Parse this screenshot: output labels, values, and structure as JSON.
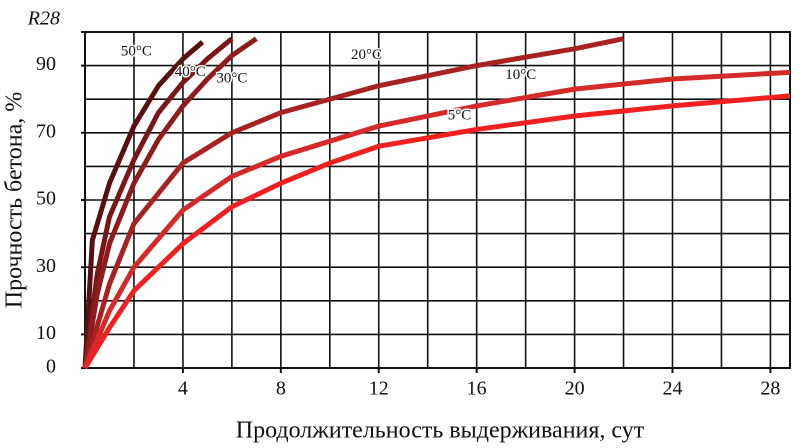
{
  "chart_data": {
    "type": "line",
    "xlabel": "Продолжительность выдерживания, сут",
    "ylabel": "Прочность бетона, %",
    "xlim": [
      0,
      28.8
    ],
    "ylim": [
      0,
      100
    ],
    "xticks": [
      4,
      8,
      12,
      16,
      20,
      24,
      28
    ],
    "yticks": [
      0,
      10,
      30,
      50,
      70,
      90,
      {
        "value": 100,
        "label": "R28"
      }
    ],
    "grid": {
      "x": 2,
      "y": 10
    },
    "series": [
      {
        "name": "50°C",
        "color": "#5a1010",
        "x": [
          0,
          0.3,
          1,
          2,
          3,
          4,
          4.8
        ],
        "values": [
          0,
          38,
          55,
          72,
          84,
          92,
          97
        ]
      },
      {
        "name": "40°C",
        "color": "#7a1616",
        "x": [
          0,
          0.5,
          1,
          2,
          3,
          4,
          5,
          6
        ],
        "values": [
          0,
          28,
          45,
          62,
          76,
          85,
          92,
          98
        ]
      },
      {
        "name": "30°C",
        "color": "#8e1c1c",
        "x": [
          0,
          0.5,
          1,
          2,
          3,
          4,
          5,
          6,
          7
        ],
        "values": [
          0,
          22,
          37,
          55,
          68,
          78,
          86,
          93,
          98
        ]
      },
      {
        "name": "20°C",
        "color": "#a82222",
        "x": [
          0,
          1,
          2,
          4,
          6,
          8,
          12,
          16,
          20,
          22
        ],
        "values": [
          0,
          25,
          43,
          61,
          70,
          76,
          84,
          90,
          95,
          98
        ]
      },
      {
        "name": "10°C",
        "color": "#d42a2a",
        "x": [
          0,
          1,
          2,
          4,
          6,
          8,
          12,
          16,
          20,
          24,
          28.8
        ],
        "values": [
          0,
          17,
          30,
          47,
          57,
          63,
          72,
          78,
          83,
          86,
          88
        ]
      },
      {
        "name": "5°C",
        "color": "#f02020",
        "x": [
          0,
          1,
          2,
          4,
          6,
          8,
          10,
          12,
          16,
          20,
          24,
          28.8
        ],
        "values": [
          0,
          12,
          23,
          37,
          48,
          55,
          61,
          66,
          71,
          75,
          78,
          81
        ]
      }
    ]
  }
}
